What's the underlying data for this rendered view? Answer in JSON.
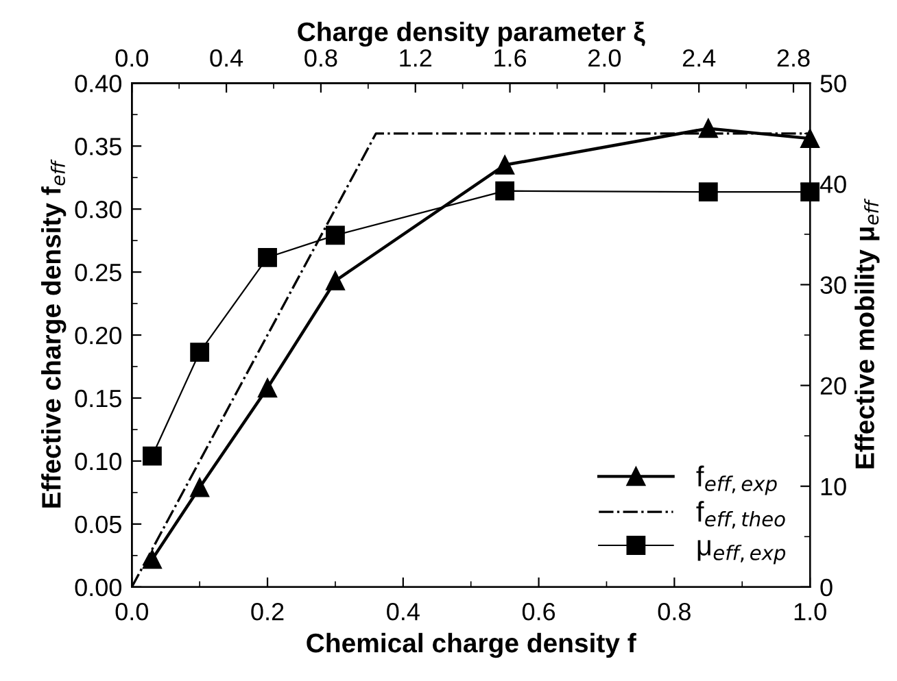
{
  "chart_data": {
    "type": "line",
    "xlabel": "Chemical charge density f",
    "ylabel": "Effective charge density f$_{eff}$",
    "y2label": "Effective mobility μ$_{eff}$",
    "x2label": "Charge density parameter ξ",
    "xlim": [
      0.0,
      1.0
    ],
    "xticks": [
      {
        "value": 0,
        "label": "0.0"
      },
      0.2,
      0.4,
      0.6,
      0.8,
      {
        "value": 1,
        "label": "1.0"
      }
    ],
    "ylim": [
      0.0,
      0.4
    ],
    "yticks": [
      {
        "value": 0,
        "label": "0.00"
      },
      0.05,
      {
        "value": 0.1,
        "label": "0.10"
      },
      0.15,
      {
        "value": 0.2,
        "label": "0.20"
      },
      0.25,
      {
        "value": 0.3,
        "label": "0.30"
      },
      0.35,
      {
        "value": 0.4,
        "label": "0.40"
      }
    ],
    "y2lim": [
      0,
      50
    ],
    "y2ticks": [
      0,
      10,
      20,
      30,
      40,
      50
    ],
    "x2lim": [
      0.0,
      2.87
    ],
    "x2ticks": [
      {
        "value": 0,
        "label": "0.0"
      },
      0.4,
      0.8,
      1.2,
      1.6,
      {
        "value": 2,
        "label": "2.0"
      },
      2.4,
      2.8
    ],
    "legend": "bottom right",
    "grid": false,
    "series": [
      {
        "name": "f$_{eff,exp}$",
        "color": "#000000",
        "marker": "triangle",
        "line_style": "solid",
        "x": [
          0.03,
          0.1,
          0.2,
          0.3,
          0.55,
          0.85,
          1.0
        ],
        "values": [
          0.022,
          0.079,
          0.158,
          0.243,
          0.335,
          0.364,
          0.356
        ]
      },
      {
        "name": "f$_{eff,theo}$",
        "color": "#000000",
        "marker": "none",
        "line_style": "dashdot",
        "x": [
          0.0,
          0.36,
          1.0
        ],
        "values": [
          0.0,
          0.36,
          0.36
        ]
      },
      {
        "name": "μ$_{eff,exp}$",
        "color": "#000000",
        "marker": "square",
        "line_style": "solid",
        "axis": "y2",
        "x": [
          0.03,
          0.1,
          0.2,
          0.3,
          0.55,
          0.85,
          1.0
        ],
        "values": [
          13,
          23.3,
          32.7,
          34.9,
          39.3,
          39.2,
          39.2
        ]
      }
    ]
  }
}
